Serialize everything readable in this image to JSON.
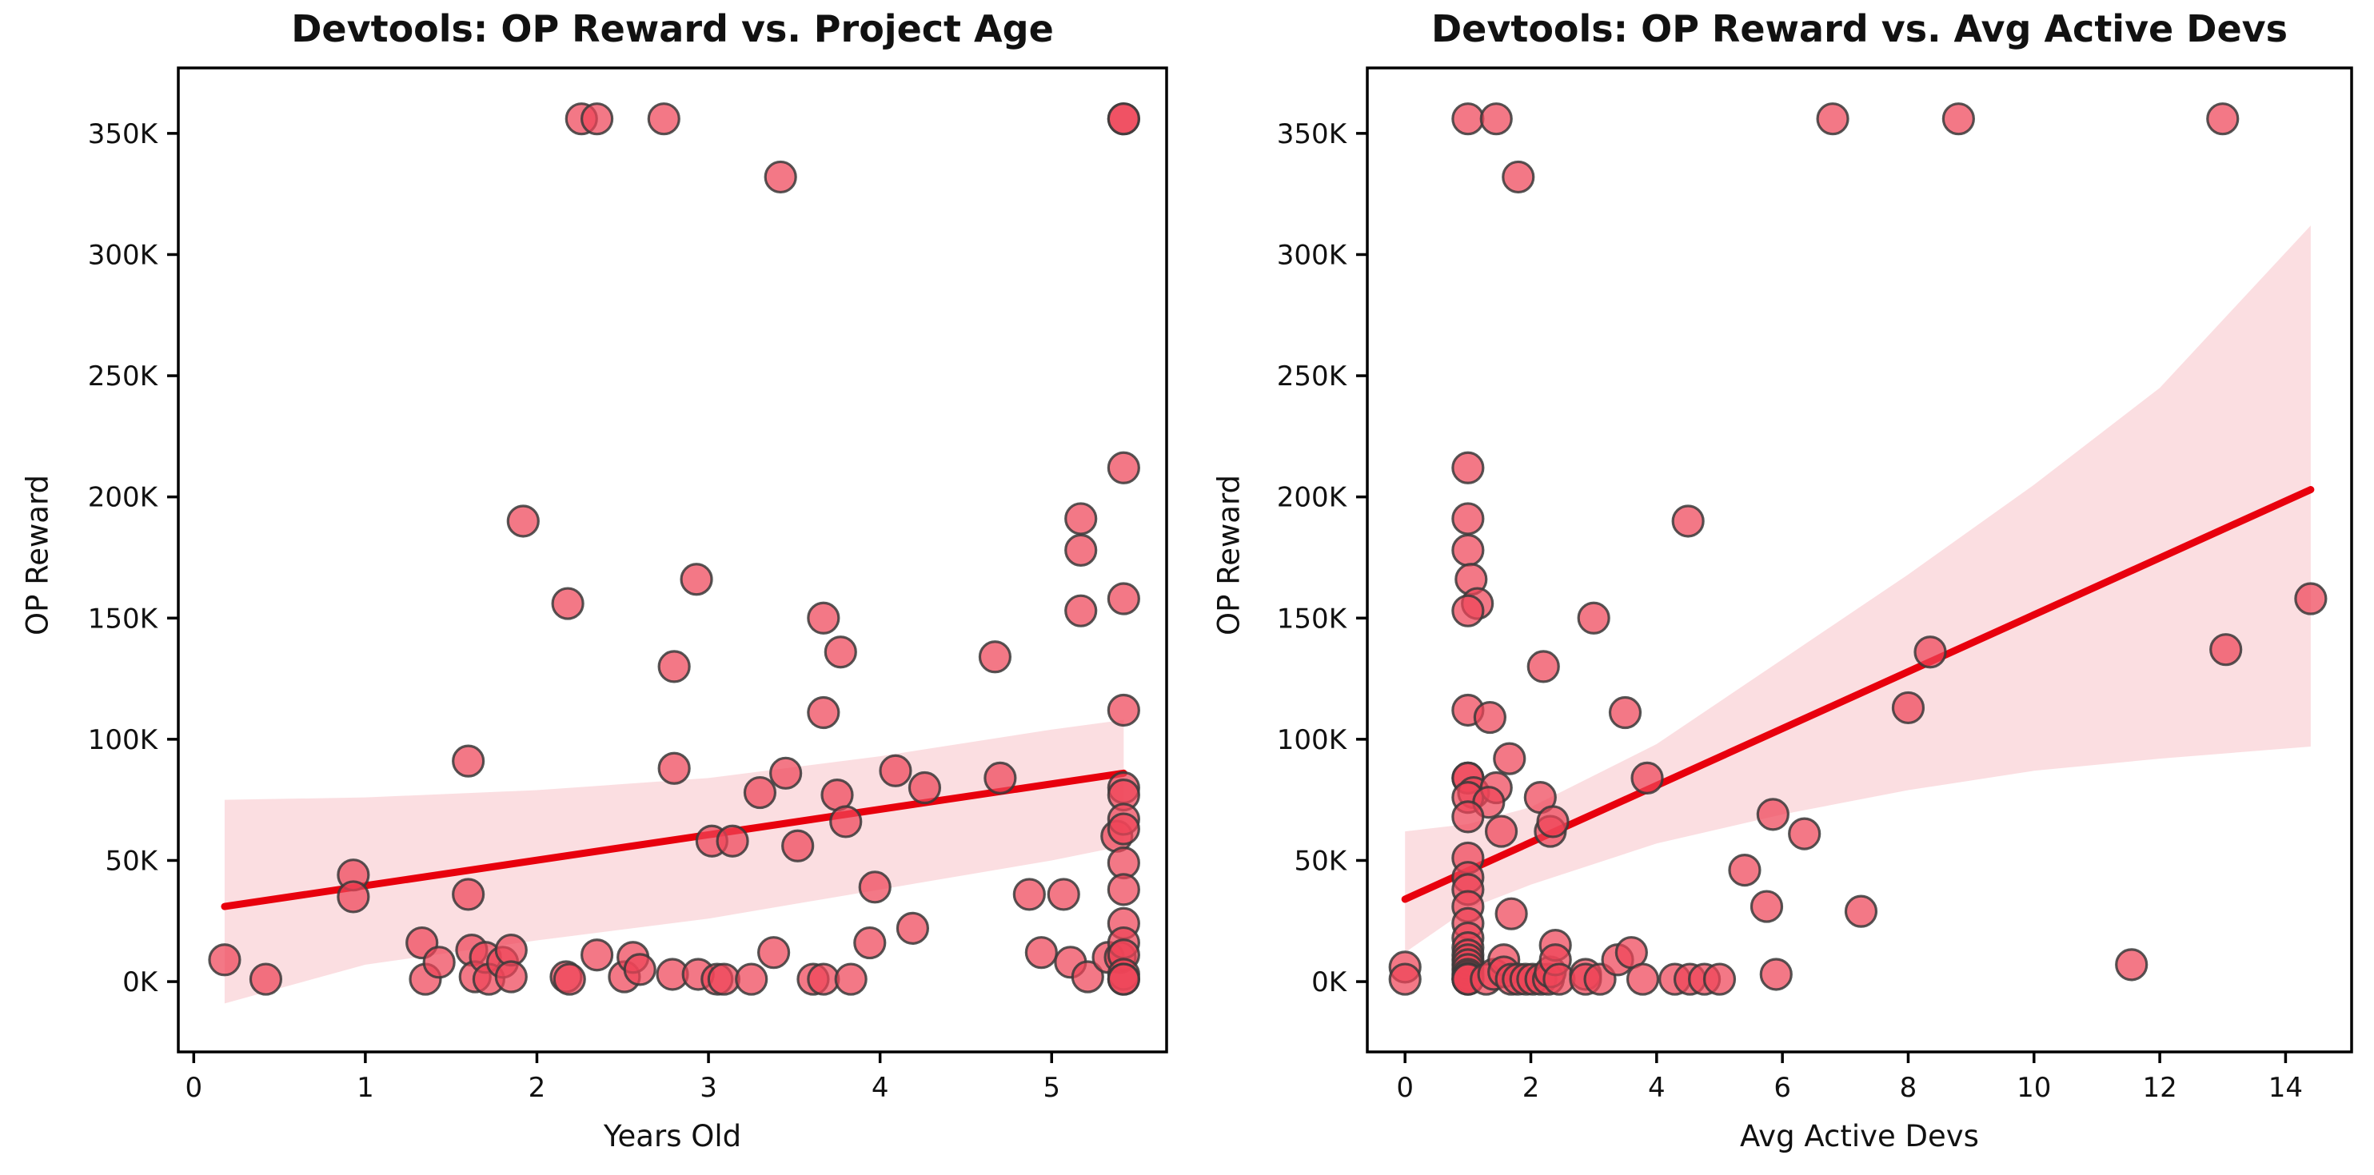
{
  "page": {
    "background": "#ffffff",
    "left_panel_title": "Devtools: OP Reward vs. Project Age",
    "right_panel_title": "Devtools: OP Reward vs. Avg Active Devs",
    "shared_ylabel": "OP Reward"
  },
  "style": {
    "point_fill": "#ee4458",
    "point_fill_opacity": 0.72,
    "point_edge": "#3a3a3a",
    "point_edge_opacity": 0.85,
    "point_radius": 19,
    "line_color": "#e8000d",
    "line_width": 9,
    "band_fill": "#ef6b76",
    "band_opacity": 0.22,
    "axis_color": "#000000",
    "spine_width": 3.5,
    "tick_len": 14,
    "tick_width": 3.5
  },
  "chart_data": [
    {
      "type": "scatter",
      "title": "Devtools: OP Reward vs. Project Age",
      "xlabel": "Years Old",
      "ylabel": "OP Reward",
      "xlim": [
        -0.09,
        5.67
      ],
      "ylim": [
        -29,
        377
      ],
      "grid": false,
      "legend": null,
      "xticks": [
        {
          "v": 0,
          "label": "0"
        },
        {
          "v": 1,
          "label": "1"
        },
        {
          "v": 2,
          "label": "2"
        },
        {
          "v": 3,
          "label": "3"
        },
        {
          "v": 4,
          "label": "4"
        },
        {
          "v": 5,
          "label": "5"
        }
      ],
      "yticks": [
        {
          "v": 0,
          "label": "0K"
        },
        {
          "v": 50,
          "label": "50K"
        },
        {
          "v": 100,
          "label": "100K"
        },
        {
          "v": 150,
          "label": "150K"
        },
        {
          "v": 200,
          "label": "200K"
        },
        {
          "v": 250,
          "label": "250K"
        },
        {
          "v": 300,
          "label": "300K"
        },
        {
          "v": 350,
          "label": "350K"
        }
      ],
      "points": [
        [
          0.18,
          9
        ],
        [
          0.42,
          1
        ],
        [
          0.93,
          44
        ],
        [
          0.93,
          35
        ],
        [
          1.33,
          16
        ],
        [
          1.35,
          1
        ],
        [
          1.43,
          8
        ],
        [
          1.6,
          91
        ],
        [
          1.6,
          36
        ],
        [
          1.62,
          13
        ],
        [
          1.64,
          2
        ],
        [
          1.7,
          10
        ],
        [
          1.72,
          1
        ],
        [
          1.8,
          8
        ],
        [
          1.85,
          13
        ],
        [
          1.85,
          2
        ],
        [
          1.92,
          190
        ],
        [
          2.17,
          2
        ],
        [
          2.18,
          156
        ],
        [
          2.19,
          1
        ],
        [
          2.26,
          356
        ],
        [
          2.35,
          356
        ],
        [
          2.35,
          11
        ],
        [
          2.51,
          2
        ],
        [
          2.56,
          10
        ],
        [
          2.6,
          5
        ],
        [
          2.74,
          356
        ],
        [
          2.79,
          3
        ],
        [
          2.8,
          130
        ],
        [
          2.8,
          88
        ],
        [
          2.93,
          166
        ],
        [
          2.94,
          3
        ],
        [
          3.02,
          58
        ],
        [
          3.05,
          1
        ],
        [
          3.09,
          1
        ],
        [
          3.14,
          58
        ],
        [
          3.25,
          1
        ],
        [
          3.3,
          78
        ],
        [
          3.38,
          12
        ],
        [
          3.42,
          332
        ],
        [
          3.45,
          86
        ],
        [
          3.52,
          56
        ],
        [
          3.61,
          1
        ],
        [
          3.67,
          150
        ],
        [
          3.67,
          111
        ],
        [
          3.67,
          1
        ],
        [
          3.75,
          77
        ],
        [
          3.77,
          136
        ],
        [
          3.8,
          66
        ],
        [
          3.83,
          1
        ],
        [
          3.94,
          16
        ],
        [
          3.97,
          39
        ],
        [
          4.09,
          87
        ],
        [
          4.19,
          22
        ],
        [
          4.26,
          80
        ],
        [
          4.67,
          134
        ],
        [
          4.7,
          84
        ],
        [
          4.87,
          36
        ],
        [
          4.94,
          12
        ],
        [
          5.07,
          36
        ],
        [
          5.11,
          8
        ],
        [
          5.17,
          191
        ],
        [
          5.17,
          178
        ],
        [
          5.17,
          153
        ],
        [
          5.21,
          2
        ],
        [
          5.33,
          10
        ],
        [
          5.38,
          60
        ],
        [
          5.4,
          10
        ],
        [
          5.42,
          356
        ],
        [
          5.42,
          356
        ],
        [
          5.42,
          212
        ],
        [
          5.42,
          158
        ],
        [
          5.42,
          112
        ],
        [
          5.42,
          80
        ],
        [
          5.42,
          77
        ],
        [
          5.42,
          67
        ],
        [
          5.42,
          63
        ],
        [
          5.42,
          49
        ],
        [
          5.42,
          38
        ],
        [
          5.42,
          24
        ],
        [
          5.42,
          16
        ],
        [
          5.42,
          11
        ],
        [
          5.42,
          3
        ],
        [
          5.42,
          1
        ],
        [
          5.42,
          1
        ]
      ],
      "regression_line": {
        "x": [
          0.18,
          5.42
        ],
        "y": [
          31,
          86
        ]
      },
      "band_upper": [
        [
          0.18,
          75
        ],
        [
          1,
          76
        ],
        [
          2,
          79
        ],
        [
          3,
          84
        ],
        [
          4,
          93
        ],
        [
          5,
          104
        ],
        [
          5.42,
          108
        ]
      ],
      "band_lower": [
        [
          0.18,
          -9
        ],
        [
          1,
          7
        ],
        [
          2,
          17
        ],
        [
          3,
          26
        ],
        [
          4,
          38
        ],
        [
          5,
          50
        ],
        [
          5.42,
          56
        ]
      ]
    },
    {
      "type": "scatter",
      "title": "Devtools: OP Reward vs. Avg Active Devs",
      "xlabel": "Avg Active Devs",
      "ylabel": "OP Reward",
      "xlim": [
        -0.6,
        15.05
      ],
      "ylim": [
        -29,
        377
      ],
      "grid": false,
      "legend": null,
      "xticks": [
        {
          "v": 0,
          "label": "0"
        },
        {
          "v": 2,
          "label": "2"
        },
        {
          "v": 4,
          "label": "4"
        },
        {
          "v": 6,
          "label": "6"
        },
        {
          "v": 8,
          "label": "8"
        },
        {
          "v": 10,
          "label": "10"
        },
        {
          "v": 12,
          "label": "12"
        },
        {
          "v": 14,
          "label": "14"
        }
      ],
      "yticks": [
        {
          "v": 0,
          "label": "0K"
        },
        {
          "v": 50,
          "label": "50K"
        },
        {
          "v": 100,
          "label": "100K"
        },
        {
          "v": 150,
          "label": "150K"
        },
        {
          "v": 200,
          "label": "200K"
        },
        {
          "v": 250,
          "label": "250K"
        },
        {
          "v": 300,
          "label": "300K"
        },
        {
          "v": 350,
          "label": "350K"
        }
      ],
      "points": [
        [
          0.0,
          6
        ],
        [
          0.0,
          1
        ],
        [
          1.0,
          356
        ],
        [
          1.45,
          356
        ],
        [
          1.8,
          332
        ],
        [
          1.0,
          212
        ],
        [
          1.0,
          191
        ],
        [
          1.0,
          178
        ],
        [
          1.05,
          166
        ],
        [
          1.15,
          156
        ],
        [
          1.0,
          153
        ],
        [
          1.0,
          112
        ],
        [
          1.35,
          109
        ],
        [
          1.66,
          92
        ],
        [
          1.0,
          84
        ],
        [
          1.0,
          84
        ],
        [
          1.09,
          78
        ],
        [
          1.0,
          76
        ],
        [
          1.45,
          80
        ],
        [
          1.33,
          74
        ],
        [
          1.0,
          68
        ],
        [
          1.53,
          62
        ],
        [
          1.0,
          51
        ],
        [
          1.0,
          43
        ],
        [
          1.0,
          38
        ],
        [
          1.0,
          31
        ],
        [
          1.0,
          24
        ],
        [
          1.0,
          18
        ],
        [
          1.0,
          14
        ],
        [
          1.0,
          11
        ],
        [
          1.0,
          9
        ],
        [
          1.0,
          7
        ],
        [
          1.0,
          5
        ],
        [
          1.0,
          3
        ],
        [
          1.0,
          2
        ],
        [
          1.0,
          1
        ],
        [
          1.0,
          1
        ],
        [
          1.0,
          1
        ],
        [
          1.29,
          1
        ],
        [
          1.41,
          3
        ],
        [
          1.57,
          9
        ],
        [
          1.57,
          4
        ],
        [
          1.69,
          28
        ],
        [
          1.69,
          1
        ],
        [
          1.8,
          1
        ],
        [
          1.92,
          1
        ],
        [
          2.03,
          1
        ],
        [
          2.15,
          76
        ],
        [
          2.16,
          1
        ],
        [
          2.2,
          130
        ],
        [
          2.28,
          1
        ],
        [
          2.31,
          62
        ],
        [
          2.31,
          4
        ],
        [
          2.35,
          66
        ],
        [
          2.39,
          15
        ],
        [
          2.39,
          9
        ],
        [
          2.45,
          1
        ],
        [
          2.87,
          3
        ],
        [
          2.87,
          1
        ],
        [
          3.0,
          150
        ],
        [
          3.1,
          1
        ],
        [
          3.38,
          9
        ],
        [
          3.5,
          111
        ],
        [
          3.6,
          12
        ],
        [
          3.78,
          1
        ],
        [
          3.85,
          84
        ],
        [
          4.29,
          1
        ],
        [
          4.5,
          190
        ],
        [
          4.53,
          1
        ],
        [
          4.76,
          1
        ],
        [
          5.0,
          1
        ],
        [
          5.4,
          46
        ],
        [
          5.75,
          31
        ],
        [
          5.85,
          69
        ],
        [
          5.9,
          3
        ],
        [
          6.35,
          61
        ],
        [
          6.8,
          356
        ],
        [
          7.25,
          29
        ],
        [
          8.0,
          113
        ],
        [
          8.35,
          136
        ],
        [
          8.8,
          356
        ],
        [
          11.55,
          7
        ],
        [
          13.0,
          356
        ],
        [
          13.05,
          137
        ],
        [
          14.4,
          158
        ]
      ],
      "regression_line": {
        "x": [
          0.0,
          14.4
        ],
        "y": [
          34,
          203
        ]
      },
      "band_upper": [
        [
          0,
          62
        ],
        [
          1,
          65
        ],
        [
          2,
          72
        ],
        [
          4,
          98
        ],
        [
          6,
          133
        ],
        [
          8,
          168
        ],
        [
          10,
          205
        ],
        [
          12,
          245
        ],
        [
          14.4,
          312
        ]
      ],
      "band_lower": [
        [
          0,
          12
        ],
        [
          1,
          30
        ],
        [
          2,
          40
        ],
        [
          4,
          57
        ],
        [
          6,
          69
        ],
        [
          8,
          79
        ],
        [
          10,
          87
        ],
        [
          12,
          92
        ],
        [
          14.4,
          97
        ]
      ]
    }
  ]
}
